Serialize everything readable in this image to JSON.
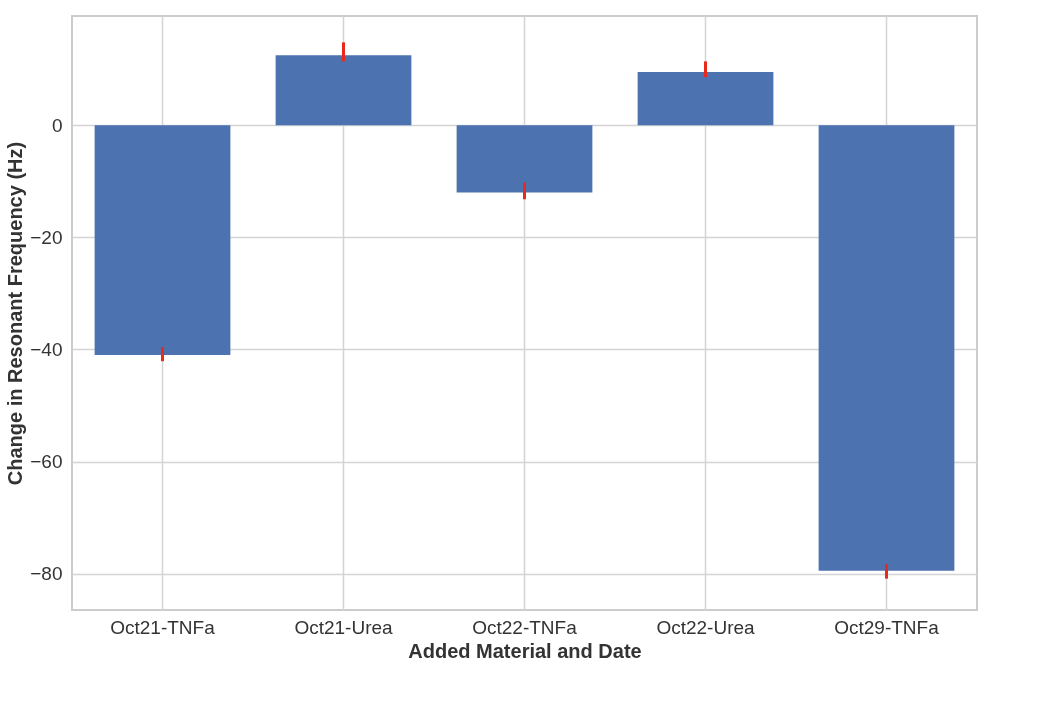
{
  "chart_data": {
    "type": "bar",
    "xlabel": "Added Material and Date",
    "ylabel": "Change in Resonant Frequency (Hz)",
    "categories": [
      "Oct21-TNFa",
      "Oct21-Urea",
      "Oct22-TNFa",
      "Oct22-Urea",
      "Oct29-TNFa"
    ],
    "values": [
      -41,
      12.5,
      -12,
      9.5,
      -79.5
    ],
    "errors": [
      [
        -42.1,
        -39.6
      ],
      [
        11.4,
        14.8
      ],
      [
        -13.2,
        -10.2
      ],
      [
        8.6,
        11.4
      ],
      [
        -80.9,
        -78.3
      ]
    ],
    "color": "#4c72b0",
    "ylim": [
      -86.5,
      19.5
    ],
    "yticks": [
      -80,
      -60,
      -40,
      -20,
      0
    ],
    "grid": true
  }
}
